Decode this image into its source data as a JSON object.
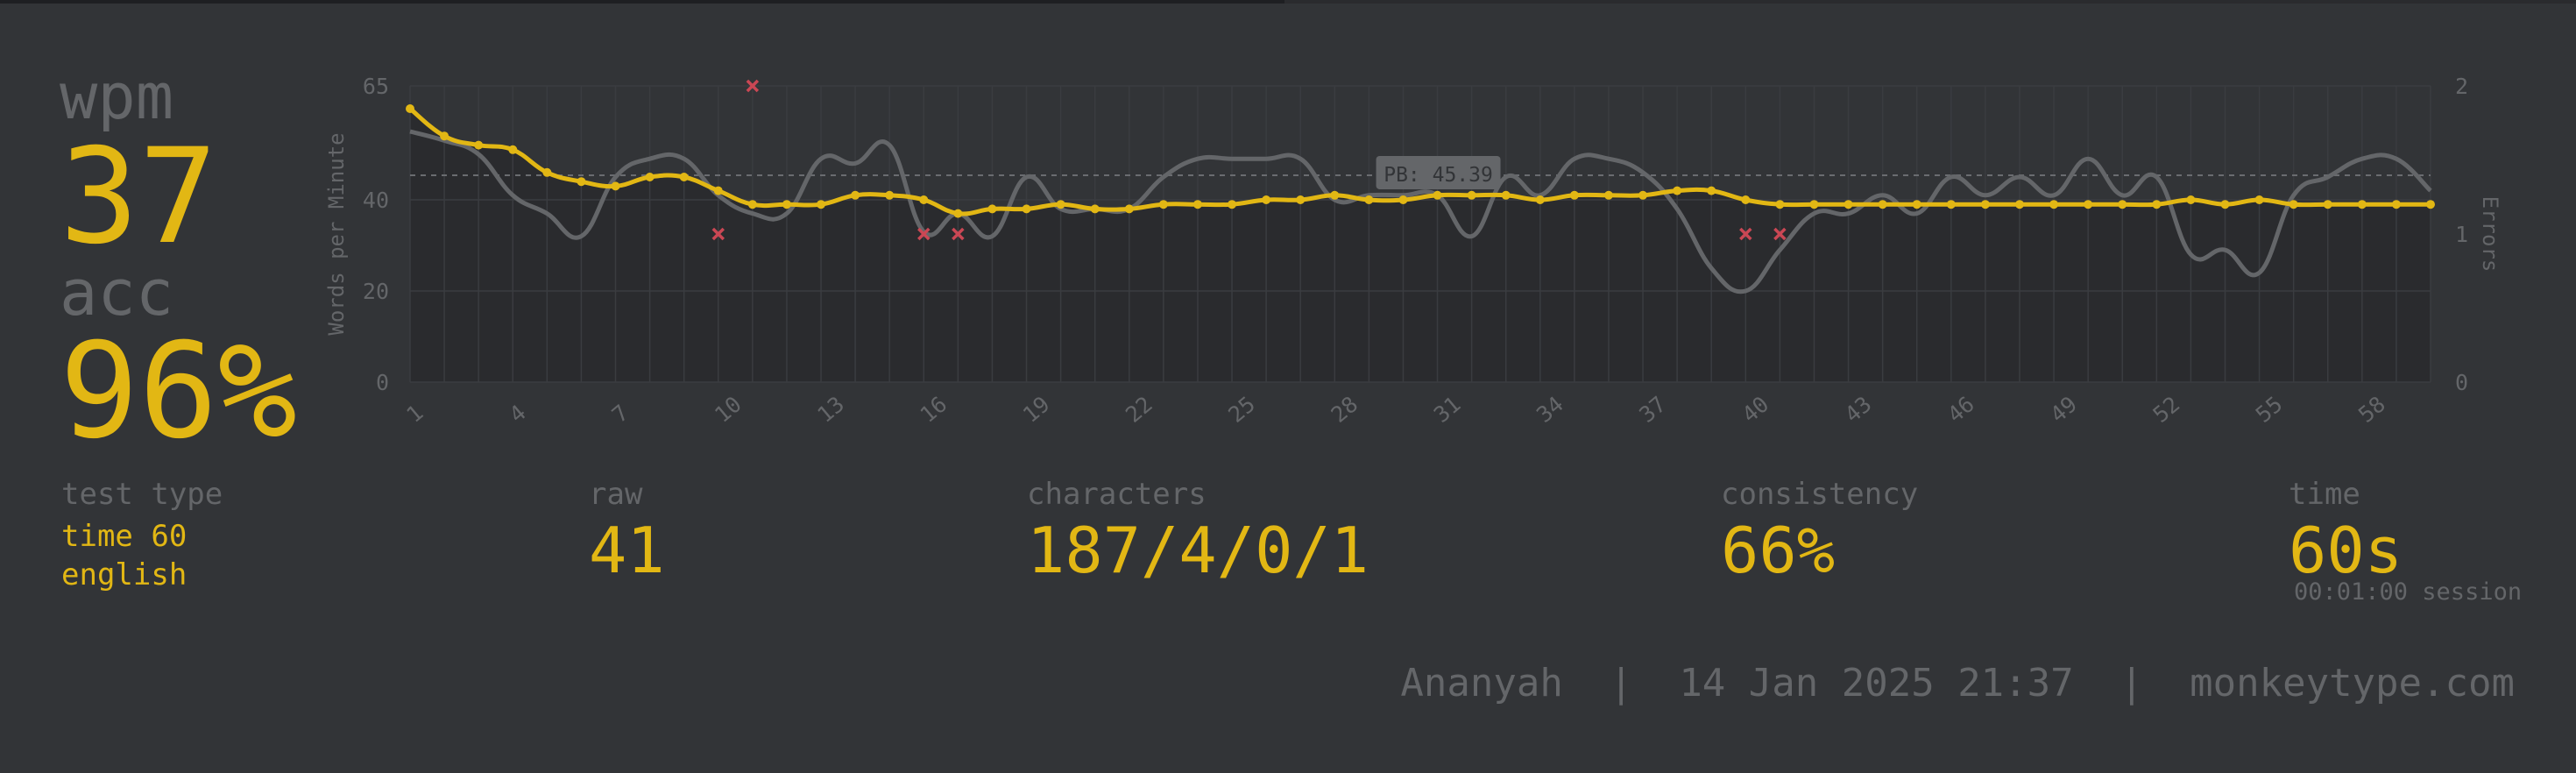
{
  "result": {
    "wpm_label": "wpm",
    "wpm": "37",
    "acc_label": "acc",
    "acc": "96%"
  },
  "stats": {
    "test_type_label": "test type",
    "test_type_line1": "time 60",
    "test_type_line2": "english",
    "raw_label": "raw",
    "raw": "41",
    "characters_label": "characters",
    "characters": "187/4/0/1",
    "consistency_label": "consistency",
    "consistency": "66%",
    "time_label": "time",
    "time": "60s",
    "session": "00:01:00 session"
  },
  "footer": {
    "user": "Ananyah",
    "datetime": "14 Jan 2025 21:37",
    "site": "monkeytype.com",
    "separator": "|"
  },
  "colors": {
    "background": "#323437",
    "accent": "#e2b714",
    "sub": "#646669",
    "raw_line": "#646669",
    "error": "#ca4754"
  },
  "chart_data": {
    "type": "line",
    "ylabel": "Words per Minute",
    "y2label": "Errors",
    "ylim": [
      0,
      65
    ],
    "y2lim": [
      0,
      2
    ],
    "yticks": [
      0,
      20,
      40,
      65
    ],
    "y2ticks": [
      0,
      1,
      2
    ],
    "x": [
      1,
      2,
      3,
      4,
      5,
      6,
      7,
      8,
      9,
      10,
      11,
      12,
      13,
      14,
      15,
      16,
      17,
      18,
      19,
      20,
      21,
      22,
      23,
      24,
      25,
      26,
      27,
      28,
      29,
      30,
      31,
      32,
      33,
      34,
      35,
      36,
      37,
      38,
      39,
      40,
      41,
      42,
      43,
      44,
      45,
      46,
      47,
      48,
      49,
      50,
      51,
      52,
      53,
      54,
      55,
      56,
      57,
      58,
      59,
      60
    ],
    "xticks": [
      "1",
      "4",
      "7",
      "10",
      "13",
      "16",
      "19",
      "22",
      "25",
      "28",
      "31",
      "34",
      "37",
      "40",
      "43",
      "46",
      "49",
      "52",
      "55",
      "58"
    ],
    "pb_label": "PB: 45.39",
    "pb_value": 45.39,
    "series": [
      {
        "key": "wpm",
        "values": [
          60,
          54,
          52,
          51,
          46,
          44,
          43,
          45,
          45,
          42,
          39,
          39,
          39,
          41,
          41,
          40,
          37,
          38,
          38,
          39,
          38,
          38,
          39,
          39,
          39,
          40,
          40,
          41,
          40,
          40,
          41,
          41,
          41,
          40,
          41,
          41,
          41,
          42,
          42,
          40,
          39,
          39,
          39,
          39,
          39,
          39,
          39,
          39,
          39,
          39,
          39,
          39,
          40,
          39,
          40,
          39,
          39,
          39,
          39,
          39
        ]
      },
      {
        "key": "raw",
        "values": [
          55,
          53,
          50,
          41,
          37,
          32,
          45,
          49,
          49,
          41,
          37,
          37,
          49,
          48,
          52,
          33,
          37,
          32,
          45,
          38,
          38,
          38,
          45,
          49,
          49,
          49,
          49,
          40,
          41,
          41,
          41,
          32,
          45,
          41,
          49,
          49,
          46,
          38,
          25,
          20,
          29,
          37,
          37,
          41,
          37,
          45,
          41,
          45,
          41,
          49,
          41,
          45,
          28,
          29,
          24,
          41,
          45,
          49,
          49,
          42
        ]
      },
      {
        "key": "errors",
        "points": [
          [
            10,
            1
          ],
          [
            11,
            2
          ],
          [
            16,
            1
          ],
          [
            17,
            1
          ],
          [
            40,
            1
          ],
          [
            41,
            1
          ]
        ]
      }
    ]
  }
}
